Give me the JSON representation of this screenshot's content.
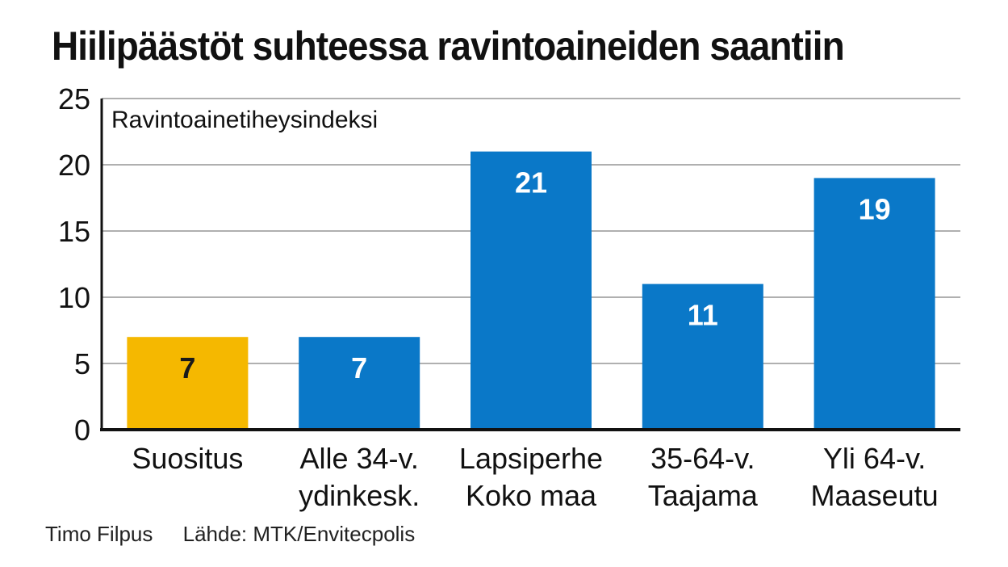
{
  "chart_data": {
    "type": "bar",
    "title": "Hiilipäästöt suhteessa ravintoaineiden saantiin",
    "ylabel": "Ravintoainetiheysindeksi",
    "xlabel": "",
    "ylim": [
      0,
      25
    ],
    "yticks": [
      "0",
      "5",
      "10",
      "15",
      "20",
      "25"
    ],
    "grid": true,
    "categories": [
      [
        "Suositus"
      ],
      [
        "Alle 34-v.",
        "ydinkesk."
      ],
      [
        "Lapsiperhe",
        "Koko maa"
      ],
      [
        "35-64-v.",
        "Taajama"
      ],
      [
        "Yli 64-v.",
        "Maaseutu"
      ]
    ],
    "values": [
      7,
      7,
      21,
      11,
      19
    ],
    "value_labels": [
      "7",
      "7",
      "21",
      "11",
      "19"
    ],
    "bar_colors": [
      "#f5b800",
      "#0a78c8",
      "#0a78c8",
      "#0a78c8",
      "#0a78c8"
    ],
    "value_label_colors": [
      "#1a1a1a",
      "#ffffff",
      "#ffffff",
      "#ffffff",
      "#ffffff"
    ]
  },
  "footer": {
    "author": "Timo Filpus",
    "source": "Lähde: MTK/Envitecpolis"
  }
}
